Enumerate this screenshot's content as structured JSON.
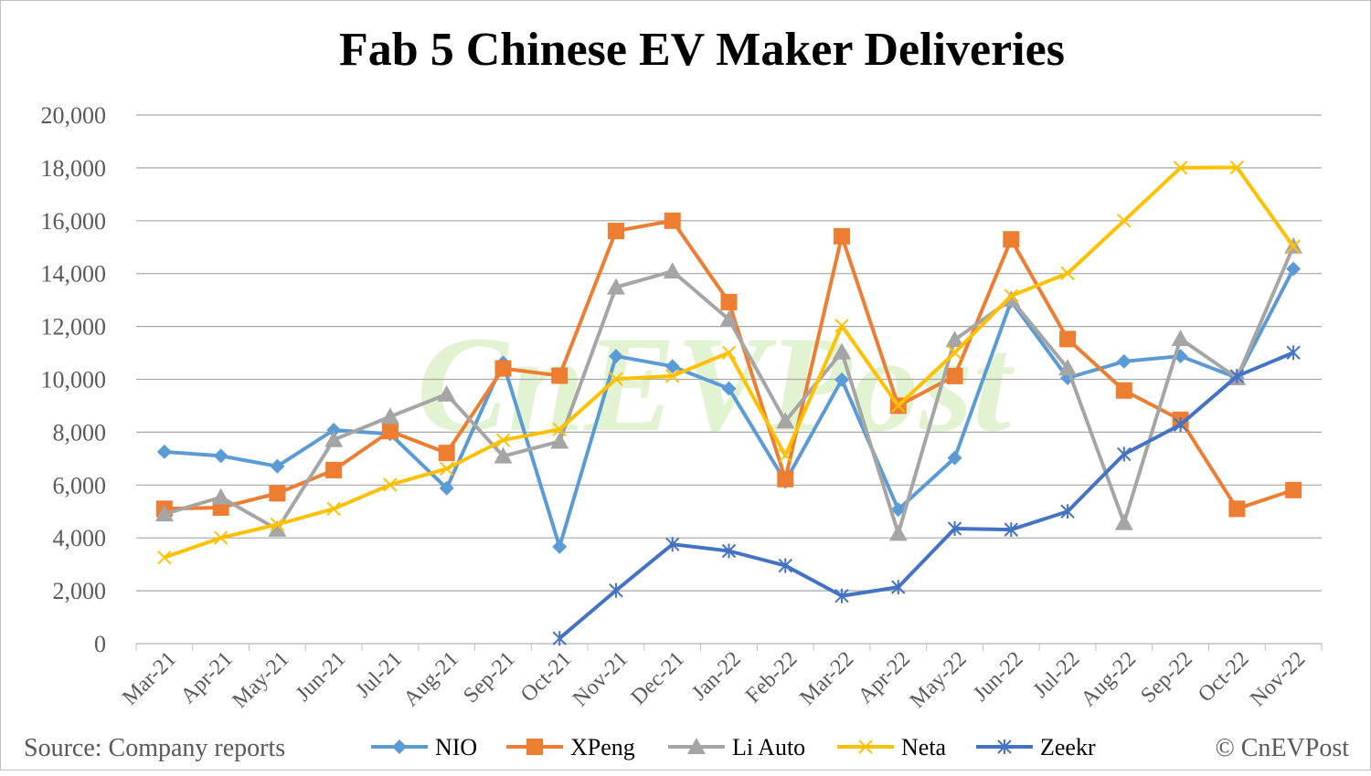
{
  "chart_data": {
    "type": "line",
    "title": "Fab 5 Chinese EV Maker Deliveries",
    "xlabel": "",
    "ylabel": "",
    "ylim": [
      0,
      20000
    ],
    "yticks": [
      "0",
      "2,000",
      "4,000",
      "6,000",
      "8,000",
      "10,000",
      "12,000",
      "14,000",
      "16,000",
      "18,000",
      "20,000"
    ],
    "grid": true,
    "legend_position": "bottom",
    "categories": [
      "Mar-21",
      "Apr-21",
      "May-21",
      "Jun-21",
      "Jul-21",
      "Aug-21",
      "Sep-21",
      "Oct-21",
      "Nov-21",
      "Dec-21",
      "Jan-22",
      "Feb-22",
      "Mar-22",
      "Apr-22",
      "May-22",
      "Jun-22",
      "Jul-22",
      "Aug-22",
      "Sep-22",
      "Oct-22",
      "Nov-22"
    ],
    "series": [
      {
        "name": "NIO",
        "color": "#5B9BD5",
        "marker": "diamond",
        "values": [
          7257,
          7102,
          6711,
          8083,
          7931,
          5880,
          10628,
          3667,
          10878,
          10489,
          9652,
          6131,
          9985,
          5074,
          7024,
          12961,
          10052,
          10677,
          10878,
          10059,
          14178
        ]
      },
      {
        "name": "XPeng",
        "color": "#ED7D31",
        "marker": "square",
        "values": [
          5102,
          5147,
          5686,
          6565,
          8040,
          7214,
          10412,
          10138,
          15613,
          16000,
          12922,
          6225,
          15414,
          9002,
          10125,
          15295,
          11524,
          9578,
          8468,
          5101,
          5811
        ]
      },
      {
        "name": "Li Auto",
        "color": "#A5A5A5",
        "marker": "triangle",
        "values": [
          4900,
          5539,
          4323,
          7713,
          8589,
          9433,
          7094,
          7649,
          13485,
          14087,
          12268,
          8414,
          11034,
          4167,
          11496,
          13024,
          10422,
          4571,
          11531,
          10052,
          15034
        ]
      },
      {
        "name": "Neta",
        "color": "#FFC000",
        "marker": "x",
        "values": [
          3259,
          4004,
          4508,
          5102,
          6011,
          6617,
          7700,
          8107,
          10013,
          10127,
          11009,
          7117,
          12026,
          9002,
          11009,
          13157,
          14011,
          16000,
          18005,
          18016,
          15022
        ]
      },
      {
        "name": "Zeekr",
        "color": "#4472C4",
        "marker": "star",
        "values": [
          null,
          null,
          null,
          null,
          null,
          null,
          null,
          200,
          2012,
          3759,
          3506,
          2951,
          1806,
          2137,
          4353,
          4313,
          5000,
          7166,
          8284,
          10119,
          11011
        ]
      }
    ]
  },
  "source": "Source: Company reports",
  "copyright": "© CnEVPost",
  "watermark": "CnEVPost"
}
